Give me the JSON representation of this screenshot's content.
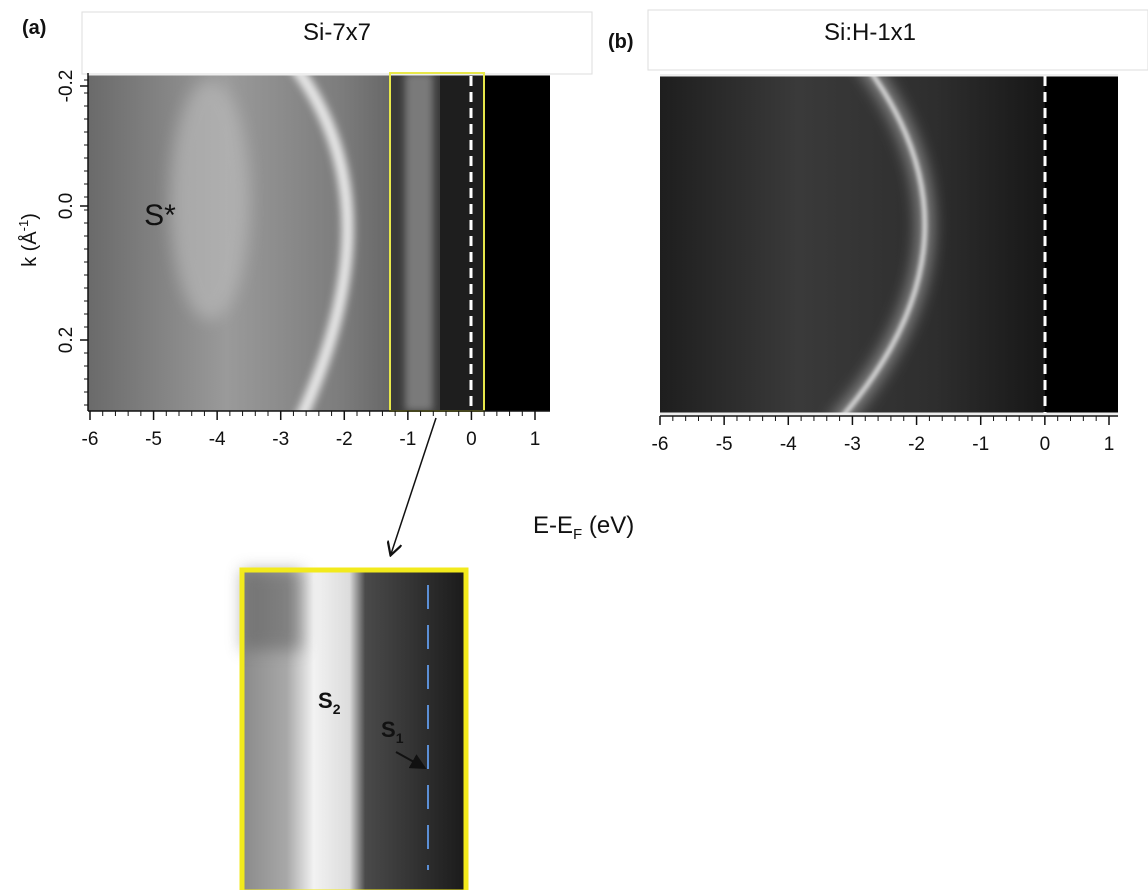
{
  "panels": [
    {
      "label": "(a)",
      "title": "Si-7x7",
      "x_ticks": [
        "-6",
        "-5",
        "-4",
        "-3",
        "-2",
        "-1",
        "0",
        "1"
      ],
      "y_ticks": [
        "-0.2",
        "0.0",
        "0.2"
      ],
      "y_axis_label": {
        "main": "k (Å",
        "sup": "-1",
        "end": ")"
      },
      "annotation": "S*"
    },
    {
      "label": "(b)",
      "title": "Si:H-1x1",
      "x_ticks": [
        "-6",
        "-5",
        "-4",
        "-3",
        "-2",
        "-1",
        "0",
        "1"
      ]
    }
  ],
  "x_axis_label": {
    "main": "E-E",
    "sub": "F",
    "unit": " (eV)"
  },
  "inset": {
    "labels": [
      {
        "main": "S",
        "sub": "2"
      },
      {
        "main": "S",
        "sub": "1"
      }
    ]
  }
}
